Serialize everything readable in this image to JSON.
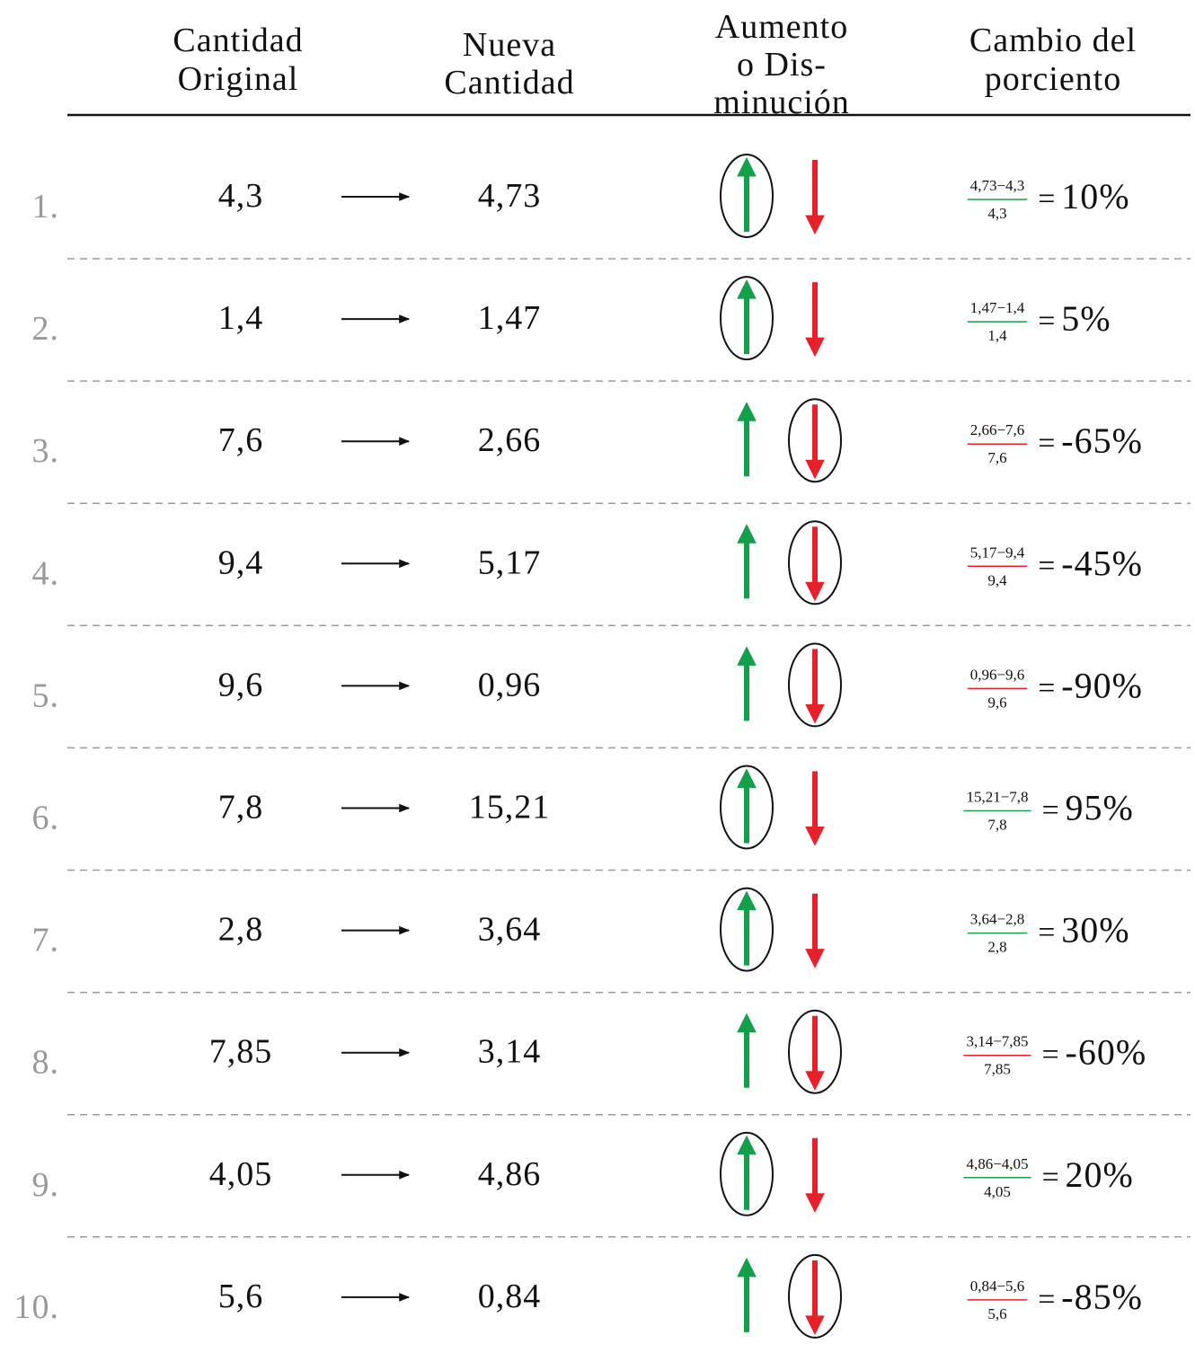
{
  "header": {
    "columns": [
      [
        "Cantidad",
        "Original"
      ],
      [
        "Nueva",
        "Cantidad"
      ],
      [
        "Aumento",
        "o Dis-",
        "minución"
      ],
      [
        "Cambio del",
        "porciento"
      ]
    ]
  },
  "operator": "=",
  "rows": [
    {
      "number": "1.",
      "original": "4,3",
      "new": "4,73",
      "circled": "up",
      "numerator": "4,73−4,3",
      "denominator": "4,3",
      "result": "10%"
    },
    {
      "number": "2.",
      "original": "1,4",
      "new": "1,47",
      "circled": "up",
      "numerator": "1,47−1,4",
      "denominator": "1,4",
      "result": "5%"
    },
    {
      "number": "3.",
      "original": "7,6",
      "new": "2,66",
      "circled": "down",
      "numerator": "2,66−7,6",
      "denominator": "7,6",
      "result": "-65%"
    },
    {
      "number": "4.",
      "original": "9,4",
      "new": "5,17",
      "circled": "down",
      "numerator": "5,17−9,4",
      "denominator": "9,4",
      "result": "-45%"
    },
    {
      "number": "5.",
      "original": "9,6",
      "new": "0,96",
      "circled": "down",
      "numerator": "0,96−9,6",
      "denominator": "9,6",
      "result": "-90%"
    },
    {
      "number": "6.",
      "original": "7,8",
      "new": "15,21",
      "circled": "up",
      "numerator": "15,21−7,8",
      "denominator": "7,8",
      "result": "95%"
    },
    {
      "number": "7.",
      "original": "2,8",
      "new": "3,64",
      "circled": "up",
      "numerator": "3,64−2,8",
      "denominator": "2,8",
      "result": "30%"
    },
    {
      "number": "8.",
      "original": "7,85",
      "new": "3,14",
      "circled": "down",
      "numerator": "3,14−7,85",
      "denominator": "7,85",
      "result": "-60%"
    },
    {
      "number": "9.",
      "original": "4,05",
      "new": "4,86",
      "circled": "up",
      "numerator": "4,86−4,05",
      "denominator": "4,05",
      "result": "20%"
    },
    {
      "number": "10.",
      "original": "5,6",
      "new": "0,84",
      "circled": "down",
      "numerator": "0,84−5,6",
      "denominator": "5,6",
      "result": "-85%"
    }
  ]
}
